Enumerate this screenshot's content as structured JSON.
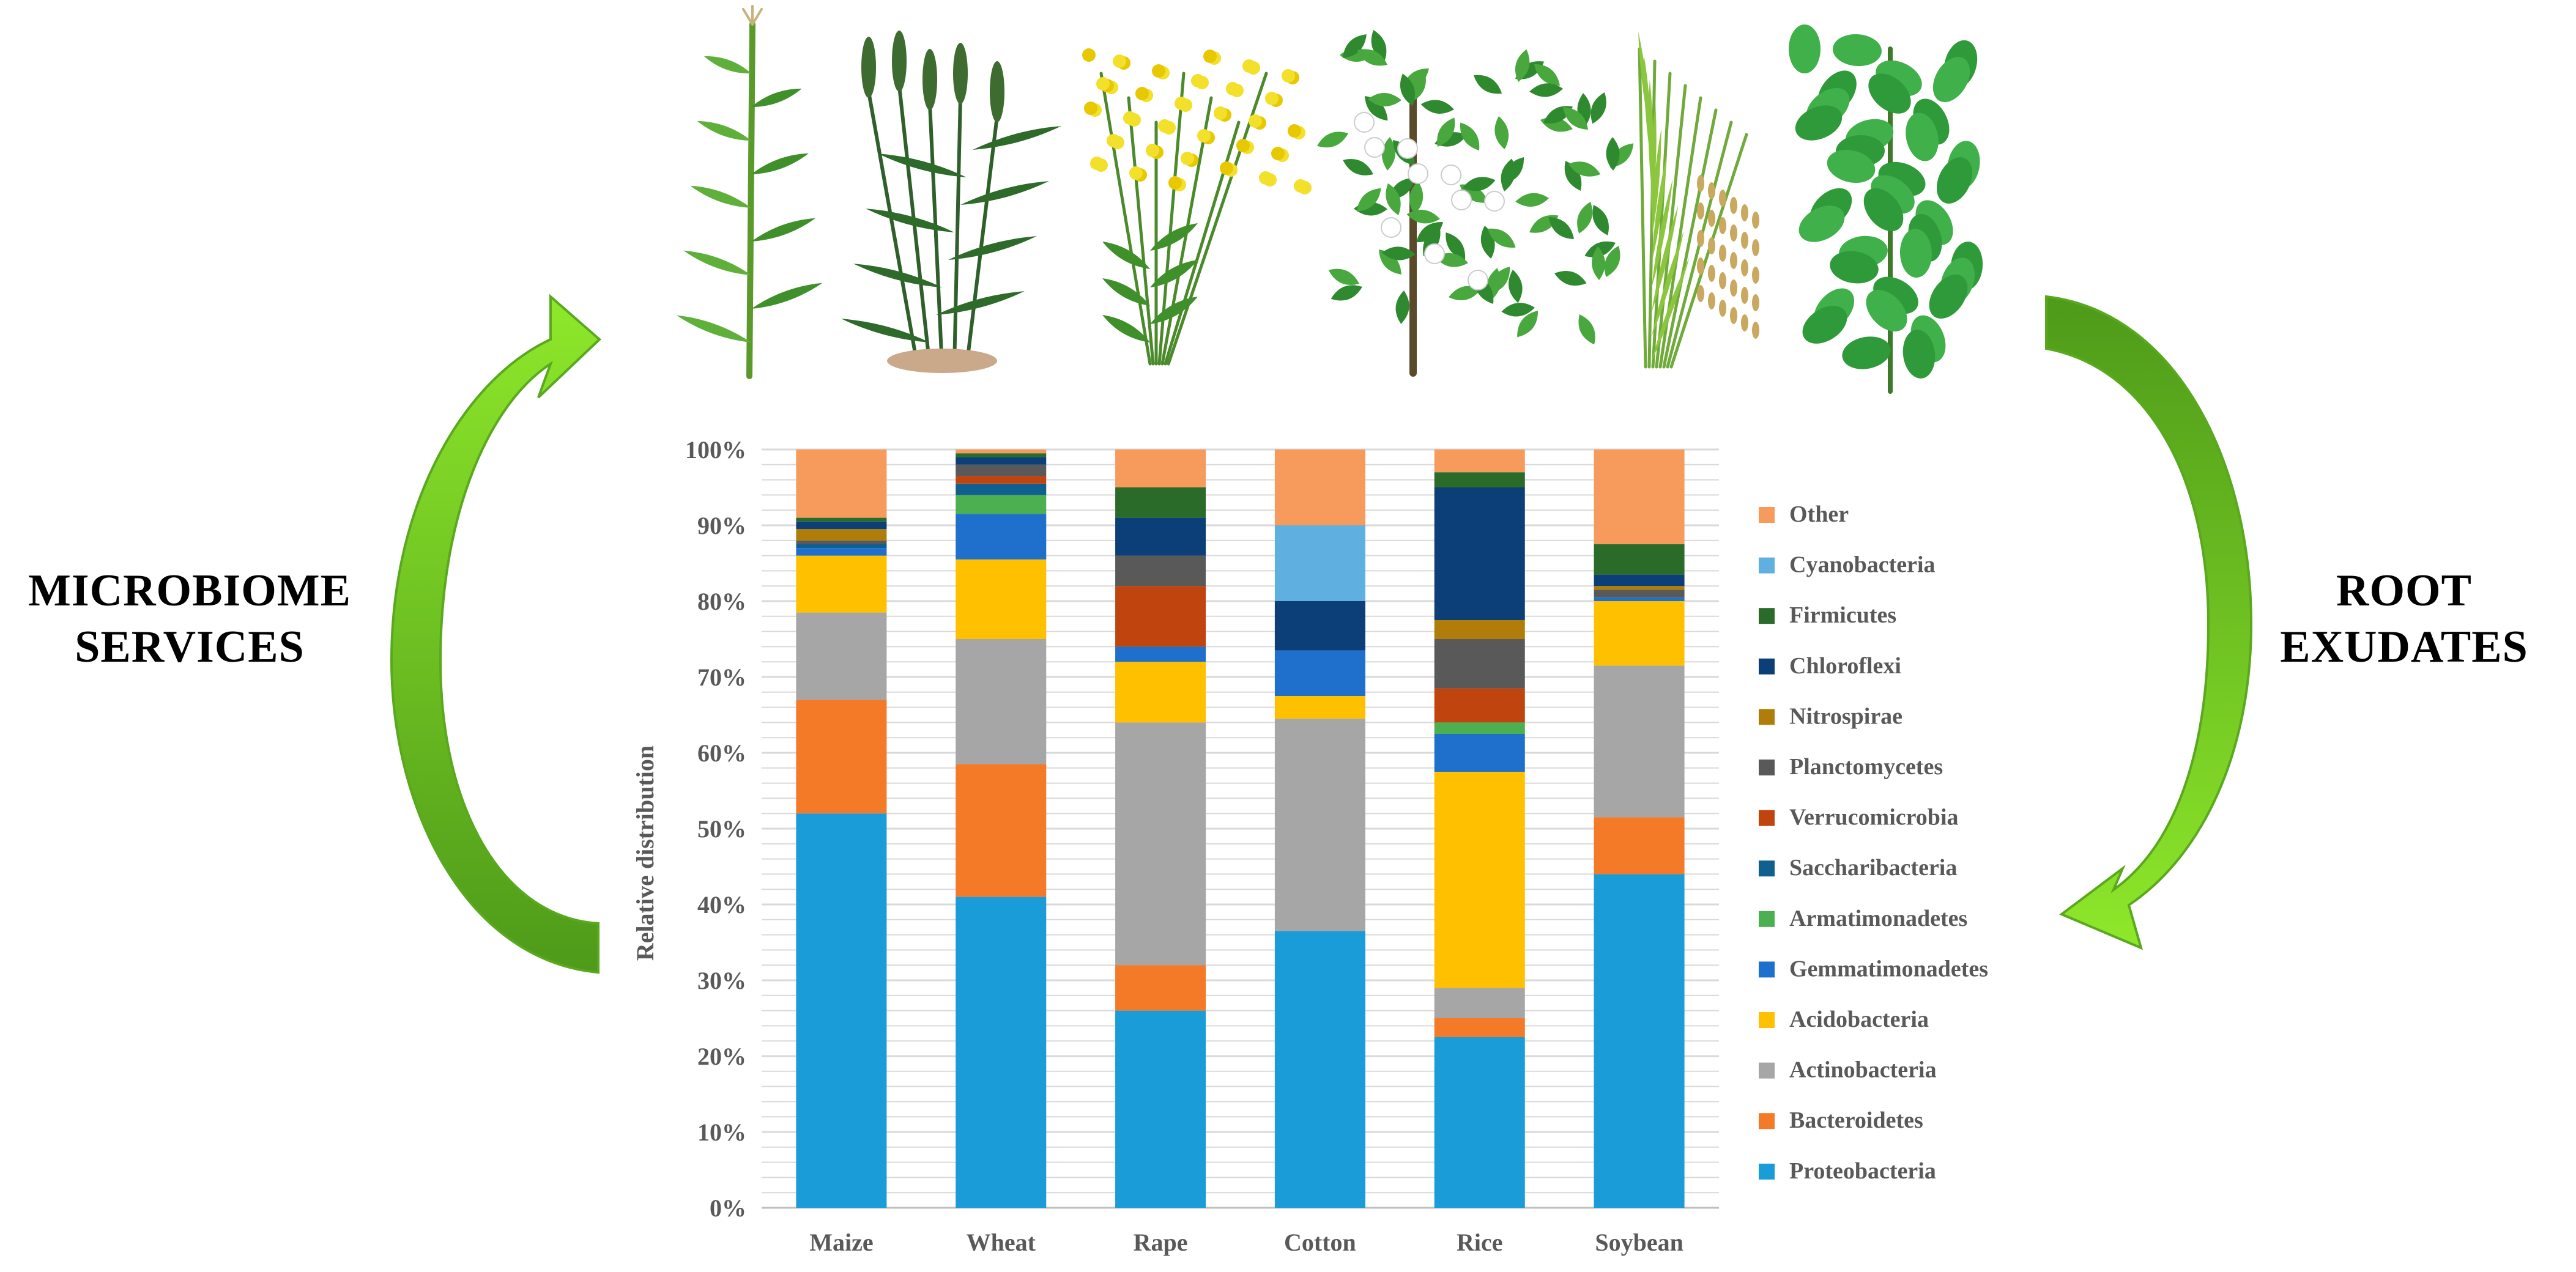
{
  "side_labels": {
    "left": [
      "MICROBIOME",
      "SERVICES"
    ],
    "right": [
      "ROOT",
      "EXUDATES"
    ]
  },
  "plants": [
    {
      "name": "Maize",
      "icon": "maize-plant-icon"
    },
    {
      "name": "Wheat",
      "icon": "wheat-plant-icon"
    },
    {
      "name": "Rape",
      "icon": "rape-plant-icon"
    },
    {
      "name": "Cotton",
      "icon": "cotton-plant-icon"
    },
    {
      "name": "Rice",
      "icon": "rice-plant-icon"
    },
    {
      "name": "Soybean",
      "icon": "soybean-plant-icon"
    }
  ],
  "colors": {
    "arrow_light": "#7ed321",
    "arrow_dark": "#4e9a1a",
    "grid": "#d9d9d9",
    "axis_text": "#595959"
  },
  "chart_data": {
    "type": "bar",
    "stacked": true,
    "percent": true,
    "title": "",
    "xlabel": "",
    "ylabel": "Relative distribution",
    "ylim": [
      0,
      100
    ],
    "yticks": [
      "0%",
      "10%",
      "20%",
      "30%",
      "40%",
      "50%",
      "60%",
      "70%",
      "80%",
      "90%",
      "100%"
    ],
    "grid": true,
    "legend_position": "right",
    "categories": [
      "Maize",
      "Wheat",
      "Rape",
      "Cotton",
      "Rice",
      "Soybean"
    ],
    "series": [
      {
        "name": "Proteobacteria",
        "color": "#1a9cd8",
        "values": [
          52.0,
          41.0,
          26.0,
          36.5,
          22.5,
          44.0
        ]
      },
      {
        "name": "Bacteroidetes",
        "color": "#f47a28",
        "values": [
          15.0,
          17.5,
          6.0,
          0.0,
          2.5,
          7.5
        ]
      },
      {
        "name": "Actinobacteria",
        "color": "#a6a6a6",
        "values": [
          11.5,
          16.5,
          32.0,
          28.0,
          4.0,
          20.0
        ]
      },
      {
        "name": "Acidobacteria",
        "color": "#ffc000",
        "values": [
          7.5,
          10.5,
          8.0,
          3.0,
          28.5,
          8.5
        ]
      },
      {
        "name": "Gemmatimonadetes",
        "color": "#1f6fcc",
        "values": [
          1.0,
          6.0,
          2.0,
          6.0,
          5.0,
          0.5
        ]
      },
      {
        "name": "Armatimonadetes",
        "color": "#4caf50",
        "values": [
          0.0,
          2.5,
          0.0,
          0.0,
          1.5,
          0.0
        ]
      },
      {
        "name": "Saccharibacteria",
        "color": "#0f5f8f",
        "values": [
          0.5,
          1.5,
          0.0,
          0.0,
          0.0,
          0.0
        ]
      },
      {
        "name": "Verrucomicrobia",
        "color": "#c0440d",
        "values": [
          0.0,
          1.0,
          8.0,
          0.0,
          4.5,
          0.0
        ]
      },
      {
        "name": "Planctomycetes",
        "color": "#595959",
        "values": [
          0.5,
          1.5,
          4.0,
          0.0,
          6.5,
          1.0
        ]
      },
      {
        "name": "Nitrospirae",
        "color": "#b07d0a",
        "values": [
          1.5,
          0.0,
          0.0,
          0.0,
          2.5,
          0.5
        ]
      },
      {
        "name": "Chloroflexi",
        "color": "#0c3f78",
        "values": [
          1.0,
          1.0,
          5.0,
          6.5,
          17.5,
          1.5
        ]
      },
      {
        "name": "Firmicutes",
        "color": "#2a6b2a",
        "values": [
          0.5,
          0.5,
          4.0,
          0.0,
          2.0,
          4.0
        ]
      },
      {
        "name": "Cyanobacteria",
        "color": "#5fb0e0",
        "values": [
          0.0,
          0.0,
          0.0,
          10.0,
          0.0,
          0.0
        ]
      },
      {
        "name": "Other",
        "color": "#f79b5c",
        "values": [
          9.0,
          0.5,
          5.0,
          10.0,
          3.0,
          12.5
        ]
      }
    ]
  }
}
